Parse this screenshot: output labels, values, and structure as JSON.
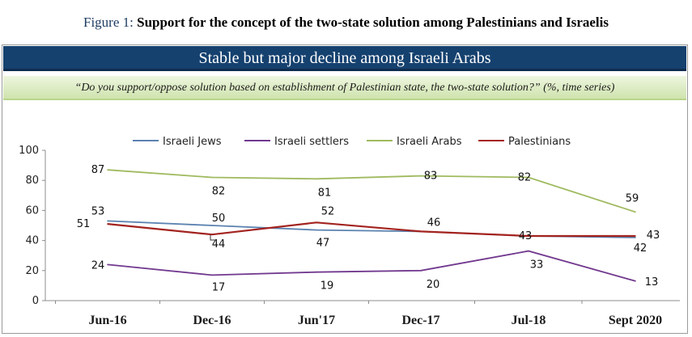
{
  "figure": {
    "prefix": "Figure 1: ",
    "title": "Support for the concept of the two-state solution among Palestinians and Israelis"
  },
  "banner": {
    "text": "Stable but major decline among Israeli Arabs"
  },
  "question": {
    "text": "“Do you support/oppose solution based on establishment of Palestinian state, the two-state solution?” (%, time series)"
  },
  "colors": {
    "israeli_jews": "#5b82b0",
    "israeli_settlers": "#72398f",
    "israeli_arabs": "#9fba5f",
    "palestinians": "#a3231f"
  },
  "chart_data": {
    "type": "line",
    "categories": [
      "Jun-16",
      "Dec-16",
      "Jun'17",
      "Dec-17",
      "Jul-18",
      "Sept 2020"
    ],
    "ylim": [
      0,
      100
    ],
    "yticks": [
      0,
      20,
      40,
      60,
      80,
      100
    ],
    "grid": false,
    "legend": "top",
    "series": [
      {
        "name": "Israeli Jews",
        "key": "israeli_jews",
        "values": [
          53,
          50,
          47,
          46,
          43,
          42
        ]
      },
      {
        "name": "Israeli settlers",
        "key": "israeli_settlers",
        "values": [
          24,
          17,
          19,
          20,
          33,
          13
        ]
      },
      {
        "name": "Israeli Arabs",
        "key": "israeli_arabs",
        "values": [
          87,
          82,
          81,
          83,
          82,
          59
        ]
      },
      {
        "name": "Palestinians",
        "key": "palestinians",
        "values": [
          51,
          44,
          52,
          46,
          43,
          43
        ]
      }
    ],
    "data_labels": [
      {
        "series": "israeli_jews",
        "index": 0,
        "text": "53"
      },
      {
        "series": "israeli_jews",
        "index": 1,
        "text": "50"
      },
      {
        "series": "israeli_jews",
        "index": 2,
        "text": "47"
      },
      {
        "series": "israeli_jews",
        "index": 3,
        "text": "46"
      },
      {
        "series": "israeli_jews",
        "index": 4,
        "text": "43"
      },
      {
        "series": "israeli_jews",
        "index": 5,
        "text": "42"
      },
      {
        "series": "israeli_settlers",
        "index": 0,
        "text": "24"
      },
      {
        "series": "israeli_settlers",
        "index": 1,
        "text": "17"
      },
      {
        "series": "israeli_settlers",
        "index": 2,
        "text": "19"
      },
      {
        "series": "israeli_settlers",
        "index": 3,
        "text": "20"
      },
      {
        "series": "israeli_settlers",
        "index": 4,
        "text": "33"
      },
      {
        "series": "israeli_settlers",
        "index": 5,
        "text": "13"
      },
      {
        "series": "israeli_arabs",
        "index": 0,
        "text": "87"
      },
      {
        "series": "israeli_arabs",
        "index": 1,
        "text": "82"
      },
      {
        "series": "israeli_arabs",
        "index": 2,
        "text": "81"
      },
      {
        "series": "israeli_arabs",
        "index": 3,
        "text": "83"
      },
      {
        "series": "israeli_arabs",
        "index": 4,
        "text": "82"
      },
      {
        "series": "israeli_arabs",
        "index": 5,
        "text": "59"
      },
      {
        "series": "palestinians",
        "index": 0,
        "text": "51"
      },
      {
        "series": "palestinians",
        "index": 1,
        "text": "44"
      },
      {
        "series": "palestinians",
        "index": 2,
        "text": "52"
      },
      {
        "series": "palestinians",
        "index": 5,
        "text": "43"
      }
    ]
  }
}
